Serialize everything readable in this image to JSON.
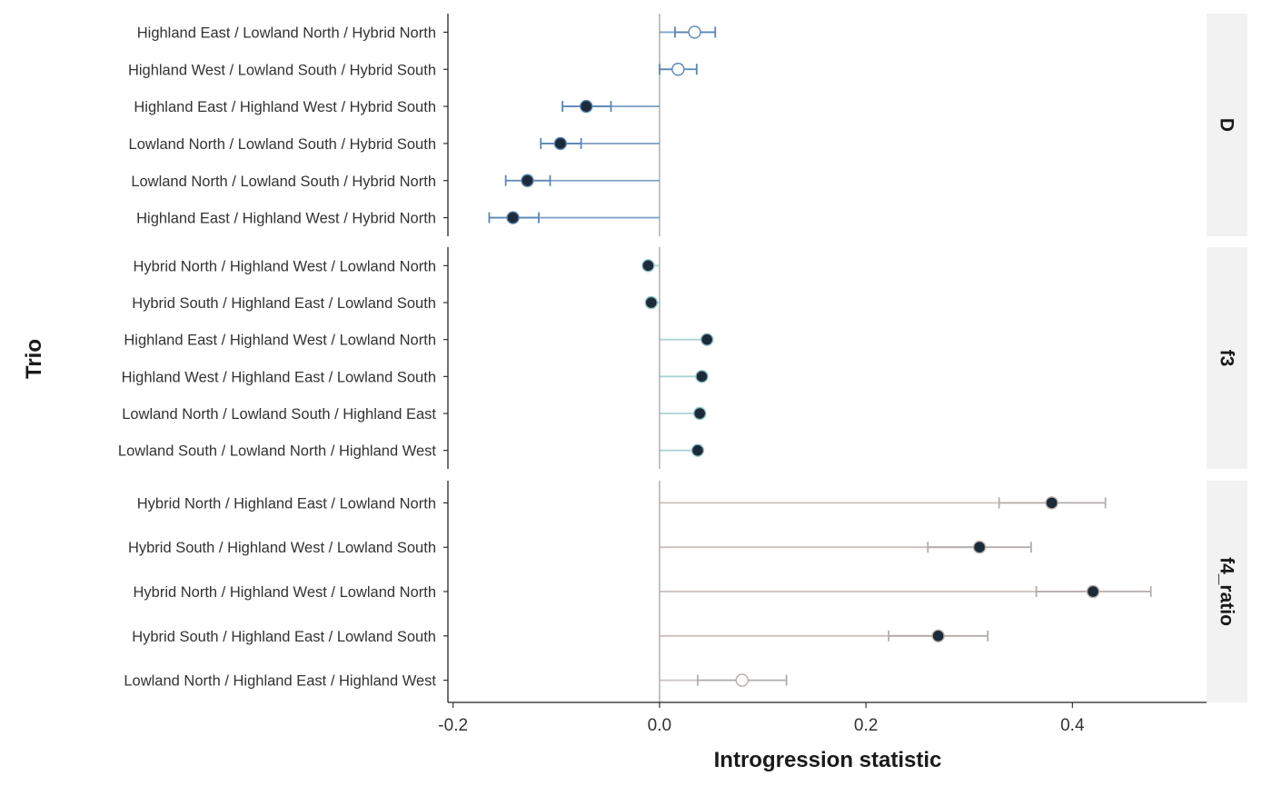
{
  "chart_data": {
    "type": "scatter",
    "xlabel": "Introgression statistic",
    "ylabel": "Trio",
    "xlim": [
      -0.205,
      0.53
    ],
    "x_ticks": [
      -0.2,
      0.0,
      0.2,
      0.4
    ],
    "x_tick_labels": [
      "-0.2",
      "0.0",
      "0.2",
      "0.4"
    ],
    "reference_line_x": 0,
    "grid": false,
    "facets": [
      {
        "label": "D",
        "color": "#5b86b5",
        "rows": [
          {
            "trio": "Highland East / Lowland North / Hybrid North",
            "value": 0.034,
            "lo": 0.015,
            "hi": 0.054,
            "significant": false
          },
          {
            "trio": "Highland West / Lowland South / Hybrid South",
            "value": 0.018,
            "lo": 0.0,
            "hi": 0.036,
            "significant": false
          },
          {
            "trio": "Highland East / Highland West / Hybrid South",
            "value": -0.071,
            "lo": -0.094,
            "hi": -0.047,
            "significant": true
          },
          {
            "trio": "Lowland North / Lowland South / Hybrid South",
            "value": -0.096,
            "lo": -0.115,
            "hi": -0.076,
            "significant": true
          },
          {
            "trio": "Lowland North / Lowland South / Hybrid North",
            "value": -0.128,
            "lo": -0.149,
            "hi": -0.106,
            "significant": true
          },
          {
            "trio": "Highland East / Highland West / Hybrid North",
            "value": -0.142,
            "lo": -0.165,
            "hi": -0.117,
            "significant": true
          }
        ]
      },
      {
        "label": "f3",
        "color": "#8fc3c5",
        "rows": [
          {
            "trio": "Hybrid North / Highland West / Lowland North",
            "value": -0.011,
            "significant": true
          },
          {
            "trio": "Hybrid South / Highland East / Lowland South",
            "value": -0.008,
            "significant": true
          },
          {
            "trio": "Highland East / Highland West / Lowland North",
            "value": 0.046,
            "significant": true
          },
          {
            "trio": "Highland West / Highland East / Lowland South",
            "value": 0.041,
            "significant": true
          },
          {
            "trio": "Lowland North / Lowland South / Highland East",
            "value": 0.039,
            "significant": true
          },
          {
            "trio": "Lowland South / Lowland North / Highland West",
            "value": 0.037,
            "significant": true
          }
        ]
      },
      {
        "label": "f4_ratio",
        "color": "#b8aca8",
        "rows": [
          {
            "trio": "Hybrid North / Highland East / Lowland North",
            "value": 0.38,
            "lo": 0.329,
            "hi": 0.432,
            "significant": true
          },
          {
            "trio": "Hybrid South / Highland West / Lowland South",
            "value": 0.31,
            "lo": 0.26,
            "hi": 0.36,
            "significant": true
          },
          {
            "trio": "Hybrid North / Highland West / Lowland North",
            "value": 0.42,
            "lo": 0.365,
            "hi": 0.476,
            "significant": true
          },
          {
            "trio": "Hybrid South / Highland East / Lowland South",
            "value": 0.27,
            "lo": 0.222,
            "hi": 0.318,
            "significant": true
          },
          {
            "trio": "Lowland North / Highland East / Highland West",
            "value": 0.08,
            "lo": 0.037,
            "hi": 0.123,
            "significant": false
          }
        ]
      }
    ]
  }
}
